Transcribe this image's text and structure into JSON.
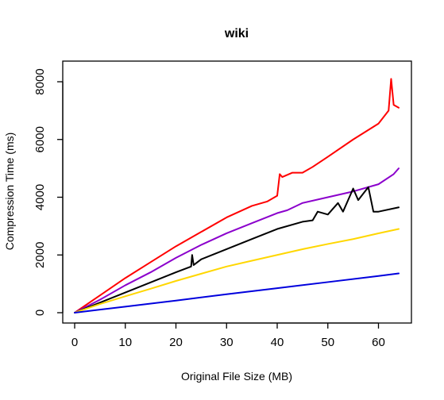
{
  "chart_data": {
    "type": "line",
    "title": "wiki",
    "xlabel": "Original File Size (MB)",
    "ylabel": "Compression Time (ms)",
    "xlim": [
      0,
      64
    ],
    "ylim": [
      0,
      8000
    ],
    "xticks": [
      0,
      10,
      20,
      30,
      40,
      50,
      60
    ],
    "yticks": [
      0,
      2000,
      4000,
      6000,
      8000
    ],
    "grid": false,
    "legend": "none",
    "series": [
      {
        "color": "#ff0000",
        "x": [
          0,
          5,
          10,
          15,
          20,
          25,
          30,
          35,
          38,
          40,
          40.5,
          41,
          43,
          45,
          47,
          50,
          55,
          60,
          62,
          62.5,
          63,
          64
        ],
        "y": [
          0,
          600,
          1200,
          1750,
          2300,
          2800,
          3300,
          3700,
          3850,
          4050,
          4800,
          4700,
          4850,
          4850,
          5050,
          5400,
          6000,
          6550,
          7000,
          8100,
          7200,
          7100
        ]
      },
      {
        "color": "#8b00cc",
        "x": [
          0,
          5,
          10,
          15,
          20,
          25,
          30,
          35,
          40,
          42,
          45,
          50,
          55,
          60,
          63,
          64
        ],
        "y": [
          0,
          450,
          950,
          1400,
          1900,
          2350,
          2750,
          3100,
          3450,
          3550,
          3800,
          4000,
          4200,
          4450,
          4800,
          5000
        ]
      },
      {
        "color": "#000000",
        "x": [
          0,
          5,
          10,
          15,
          20,
          23,
          23.2,
          23.5,
          25,
          30,
          35,
          40,
          45,
          47,
          48,
          50,
          52,
          53,
          55,
          56,
          58,
          59,
          60,
          64
        ],
        "y": [
          0,
          350,
          700,
          1050,
          1400,
          1600,
          2000,
          1650,
          1850,
          2200,
          2550,
          2900,
          3150,
          3200,
          3500,
          3400,
          3800,
          3500,
          4300,
          3900,
          4350,
          3500,
          3500,
          3650
        ]
      },
      {
        "color": "#ffd700",
        "x": [
          0,
          5,
          10,
          15,
          20,
          25,
          30,
          35,
          40,
          45,
          50,
          55,
          60,
          64
        ],
        "y": [
          0,
          300,
          570,
          830,
          1100,
          1350,
          1600,
          1800,
          2000,
          2200,
          2380,
          2550,
          2750,
          2900
        ]
      },
      {
        "color": "#0000dd",
        "x": [
          0,
          10,
          20,
          30,
          40,
          50,
          60,
          64
        ],
        "y": [
          0,
          210,
          420,
          640,
          850,
          1060,
          1270,
          1360
        ]
      }
    ]
  }
}
